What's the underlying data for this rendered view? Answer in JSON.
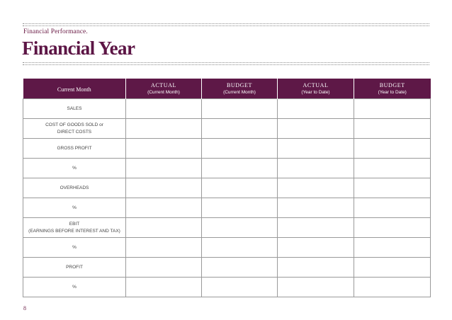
{
  "header": {
    "subtitle": "Financial Performance.",
    "title": "Financial Year"
  },
  "table": {
    "first_header": "Current Month",
    "columns": [
      {
        "main": "ACTUAL",
        "sub": "(Current Month)"
      },
      {
        "main": "BUDGET",
        "sub": "(Current Month)"
      },
      {
        "main": "ACTUAL",
        "sub": "(Year to Date)"
      },
      {
        "main": "BUDGET",
        "sub": "(Year to Date)"
      }
    ],
    "rows": [
      {
        "line1": "SALES",
        "line2": ""
      },
      {
        "line1": "COST OF GOODS SOLD or",
        "line2": "DIRECT COSTS"
      },
      {
        "line1": "GROSS PROFIT",
        "line2": ""
      },
      {
        "line1": "%",
        "line2": ""
      },
      {
        "line1": "OVERHEADS",
        "line2": ""
      },
      {
        "line1": "%",
        "line2": ""
      },
      {
        "line1": "EBIT",
        "line2": "(EARNINGS BEFORE INTEREST AND TAX)"
      },
      {
        "line1": "%",
        "line2": ""
      },
      {
        "line1": "PROFIT",
        "line2": ""
      },
      {
        "line1": "%",
        "line2": ""
      }
    ]
  },
  "footer": {
    "page_number": "8"
  }
}
